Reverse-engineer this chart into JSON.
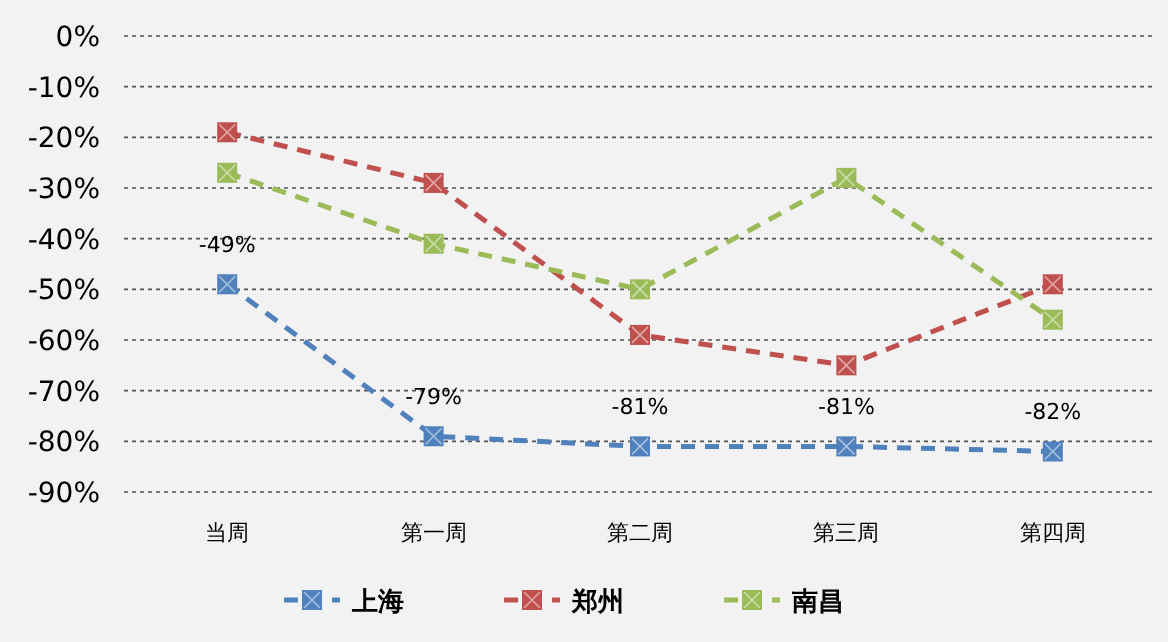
{
  "chart_data": {
    "type": "line",
    "categories": [
      "当周",
      "第一周",
      "第二周",
      "第三周",
      "第四周"
    ],
    "series": [
      {
        "name": "上海",
        "color": "#4f81bd",
        "values": [
          -49,
          -79,
          -81,
          -81,
          -82
        ],
        "value_labels": [
          "-49%",
          "-79%",
          "-81%",
          "-81%",
          "-82%"
        ]
      },
      {
        "name": "郑州",
        "color": "#c0504d",
        "values": [
          -19,
          -29,
          -59,
          -65,
          -49
        ]
      },
      {
        "name": "南昌",
        "color": "#9bbb59",
        "values": [
          -27,
          -41,
          -50,
          -28,
          -56
        ]
      }
    ],
    "ylim": [
      -90,
      0
    ],
    "yticks": [
      {
        "value": 0,
        "label": "0%"
      },
      {
        "value": -10,
        "label": "-10%"
      },
      {
        "value": -20,
        "label": "-20%"
      },
      {
        "value": -30,
        "label": "-30%"
      },
      {
        "value": -40,
        "label": "-40%"
      },
      {
        "value": -50,
        "label": "-50%"
      },
      {
        "value": -60,
        "label": "-60%"
      },
      {
        "value": -70,
        "label": "-70%"
      },
      {
        "value": -80,
        "label": "-80%"
      },
      {
        "value": -90,
        "label": "-90%"
      }
    ],
    "grid": "y",
    "legend": "bottom",
    "marker": "square",
    "line_style": "dashed"
  }
}
